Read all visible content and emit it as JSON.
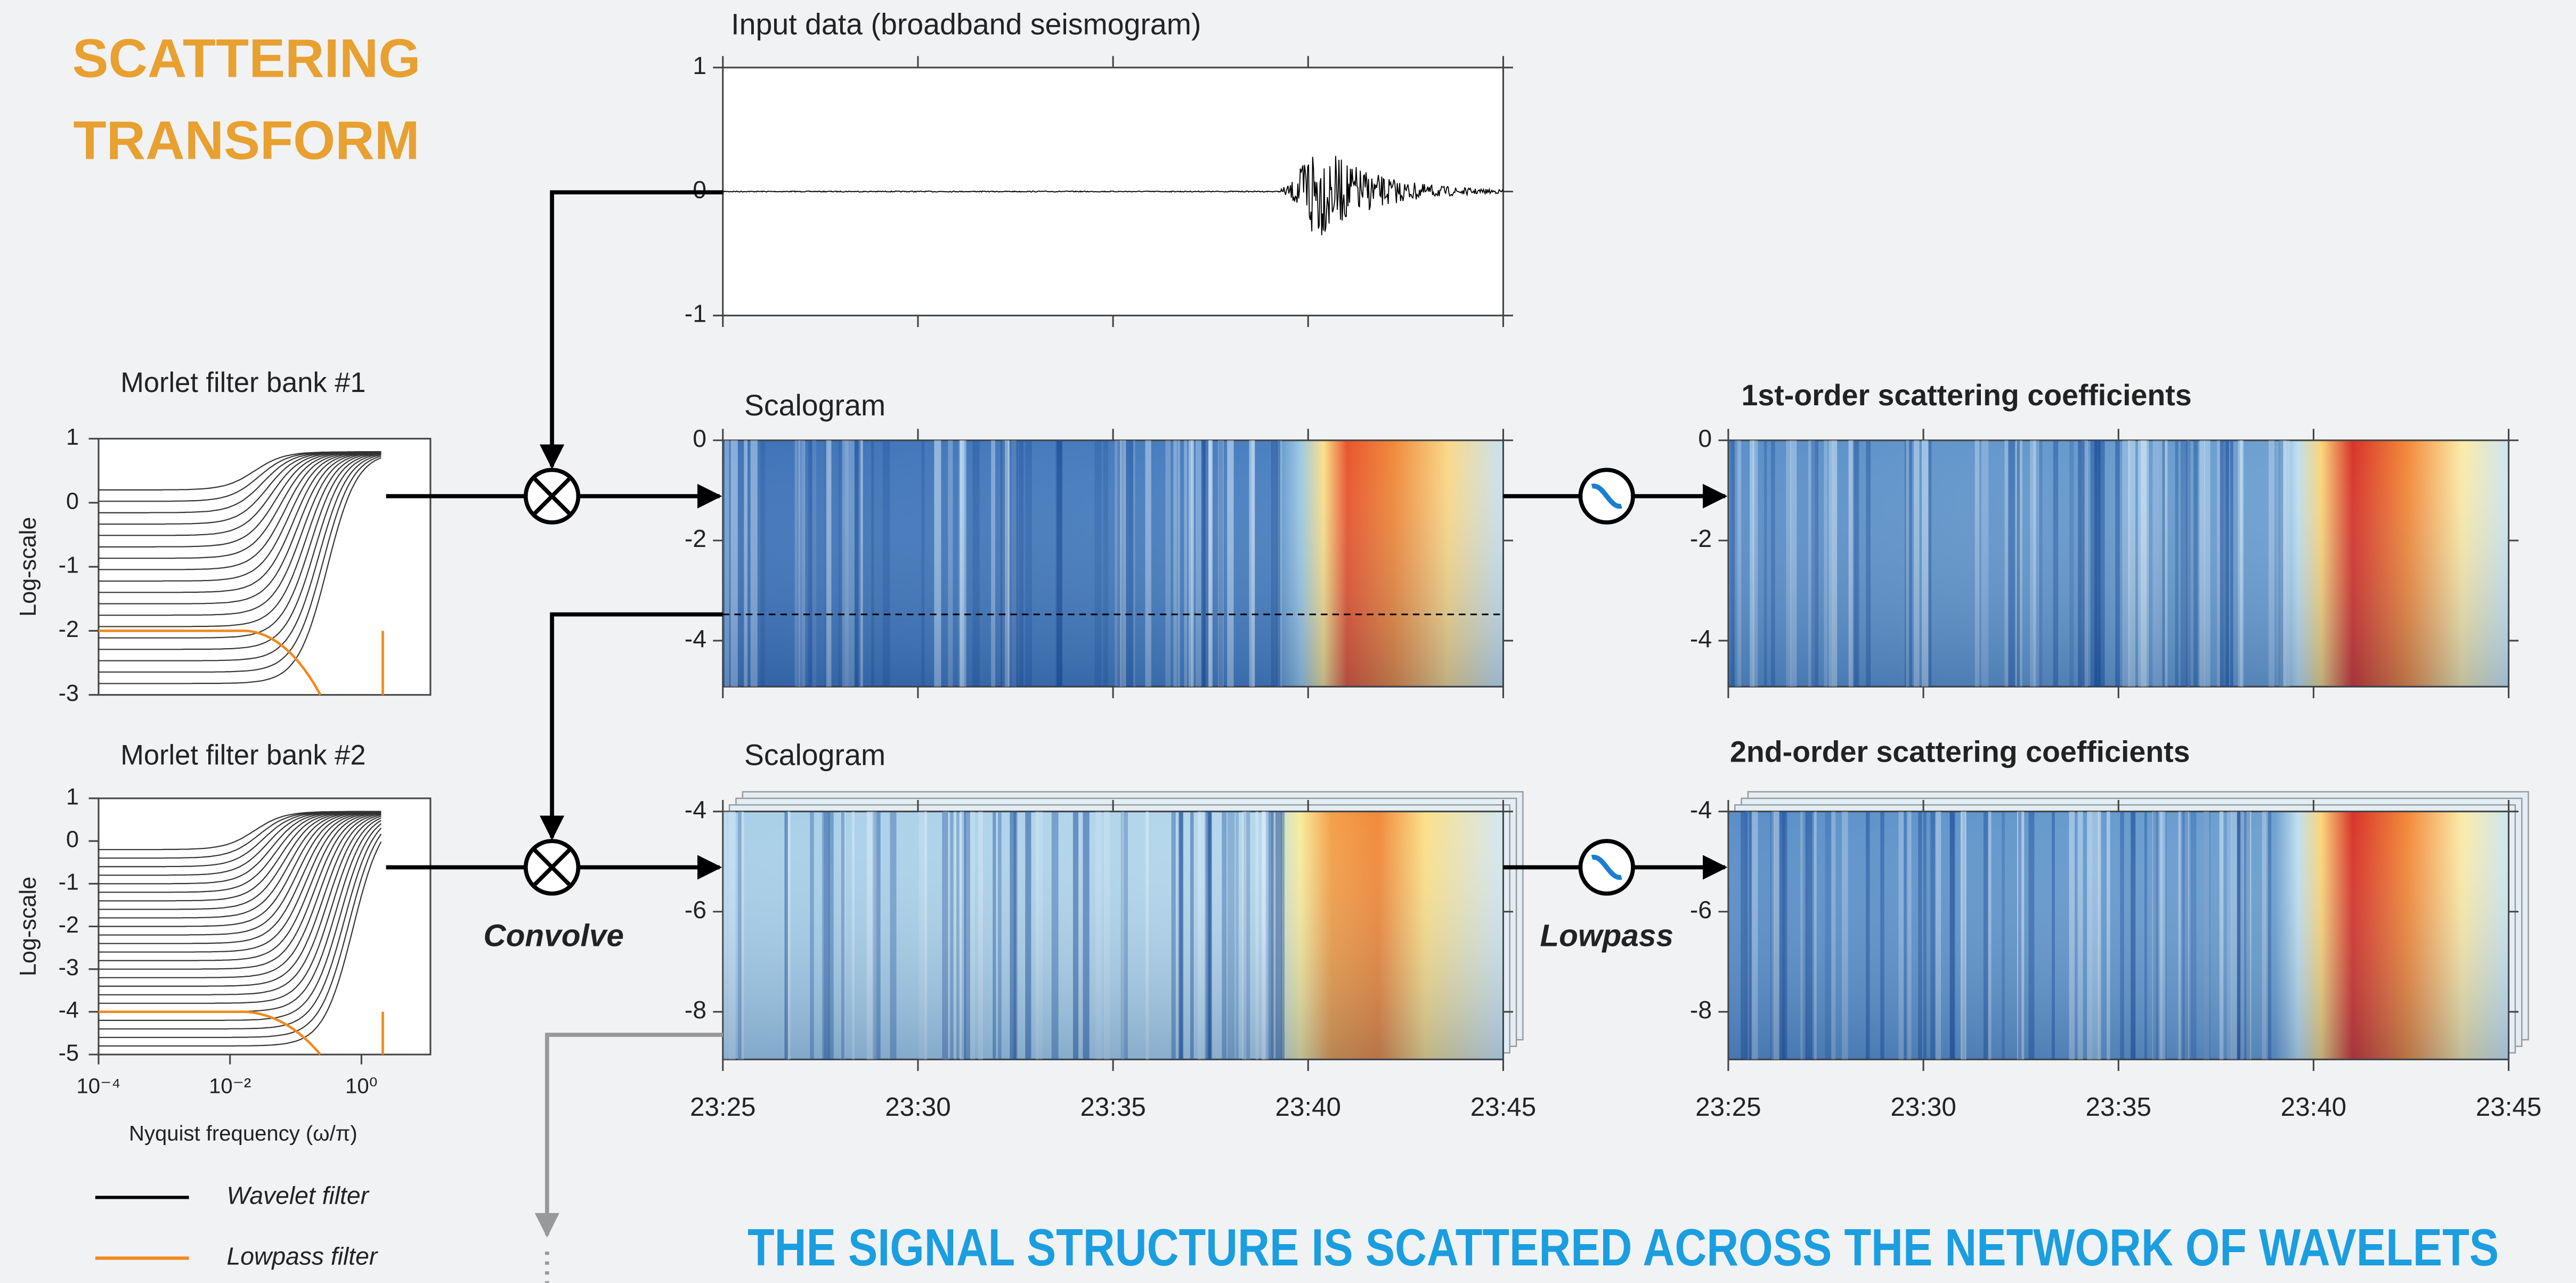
{
  "title": [
    "SCATTERING",
    "TRANSFORM"
  ],
  "input": {
    "title": "Input data (broadband seismogram)",
    "yticks": [
      "1",
      "0",
      "-1"
    ]
  },
  "filter_banks": [
    {
      "title": "Morlet filter bank #1",
      "ylabel": "Log-scale",
      "yticks": [
        "1",
        "0",
        "-1",
        "-2",
        "-3"
      ]
    },
    {
      "title": "Morlet filter bank #2",
      "ylabel": "Log-scale",
      "yticks": [
        "1",
        "0",
        "-1",
        "-2",
        "-3",
        "-4",
        "-5"
      ],
      "xticks": [
        "10⁻⁴",
        "10⁻²",
        "10⁰"
      ],
      "xlabel": "Nyquist frequency (ω/π)"
    }
  ],
  "scalograms": [
    {
      "title": "Scalogram",
      "yticks": [
        "0",
        "-2",
        "-4"
      ]
    },
    {
      "title": "Scalogram",
      "yticks": [
        "-4",
        "-6",
        "-8"
      ]
    }
  ],
  "coefficients": [
    {
      "title": "1st-order scattering coefficients",
      "yticks": [
        "0",
        "-2",
        "-4"
      ]
    },
    {
      "title": "2nd-order scattering coefficients",
      "yticks": [
        "-4",
        "-6",
        "-8"
      ]
    }
  ],
  "time_ticks": [
    "23:25",
    "23:30",
    "23:35",
    "23:40",
    "23:45"
  ],
  "operations": {
    "convolve": "Convolve",
    "lowpass": "Lowpass"
  },
  "legend": [
    "Wavelet filter",
    "Lowpass filter"
  ],
  "caption": "THE SIGNAL STRUCTURE IS SCATTERED ACROSS THE NETWORK OF WAVELETS"
}
